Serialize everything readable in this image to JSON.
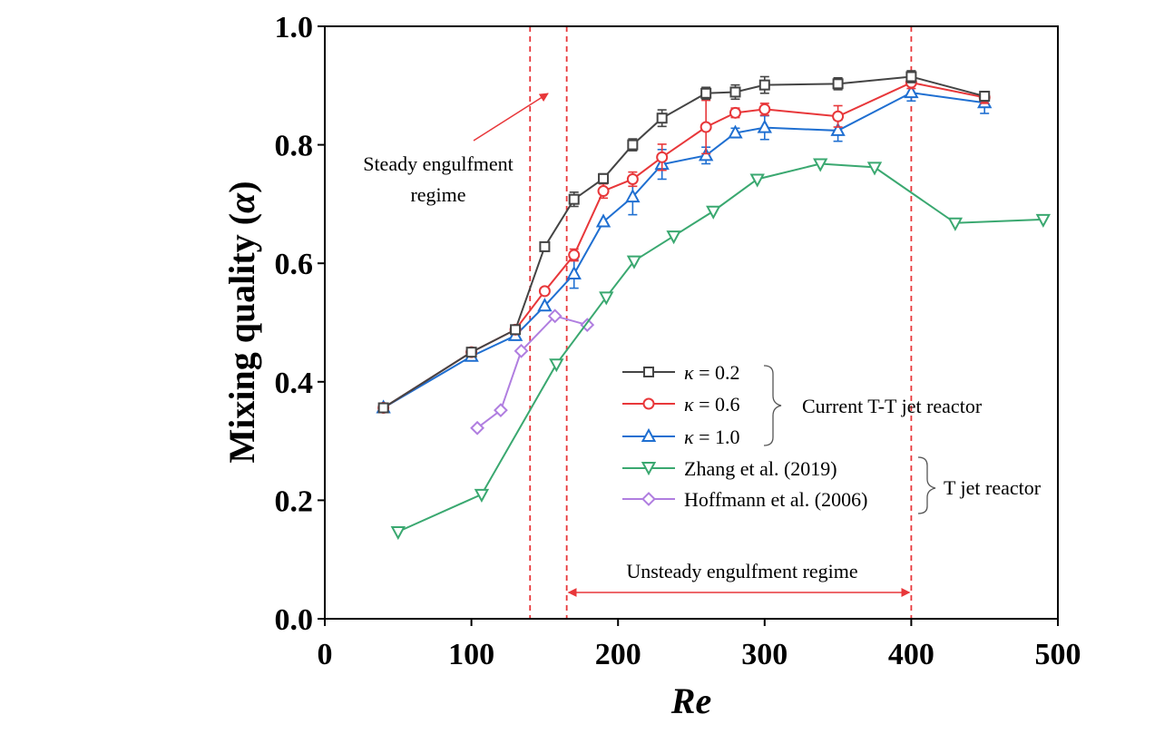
{
  "chart_data": {
    "type": "line",
    "xlabel": "Re",
    "ylabel_main": "Mixing quality (",
    "ylabel_symbol": "α",
    "ylabel_close": ")",
    "xlim": [
      0,
      500
    ],
    "ylim": [
      0.0,
      1.0
    ],
    "x_ticks": [
      "0",
      "100",
      "200",
      "300",
      "400",
      "500"
    ],
    "y_ticks": [
      "0.0",
      "0.2",
      "0.4",
      "0.6",
      "0.8",
      "1.0"
    ],
    "grid": false,
    "series": [
      {
        "name": "κ = 0.2",
        "symbol": "κ",
        "value_label": " = 0.2",
        "color": "#444444",
        "marker": "square",
        "x": [
          40,
          100,
          130,
          150,
          170,
          190,
          210,
          230,
          260,
          280,
          300,
          350,
          400,
          450
        ],
        "y": [
          0.356,
          0.45,
          0.488,
          0.628,
          0.708,
          0.743,
          0.8,
          0.845,
          0.887,
          0.889,
          0.901,
          0.903,
          0.915,
          0.882
        ],
        "err": [
          0,
          0,
          0,
          0,
          0.012,
          0.008,
          0.01,
          0.014,
          0.01,
          0.012,
          0.014,
          0.01,
          0.01,
          0.008
        ]
      },
      {
        "name": "κ = 0.6",
        "symbol": "κ",
        "value_label": " = 0.6",
        "color": "#e8373a",
        "marker": "circle",
        "x": [
          40,
          100,
          130,
          150,
          170,
          190,
          210,
          230,
          260,
          280,
          300,
          350,
          400,
          450
        ],
        "y": [
          0.356,
          0.45,
          0.488,
          0.553,
          0.614,
          0.722,
          0.742,
          0.779,
          0.83,
          0.854,
          0.86,
          0.848,
          0.905,
          0.88
        ],
        "err": [
          0,
          0,
          0,
          0,
          0.01,
          0.012,
          0.012,
          0.022,
          0.045,
          0.008,
          0.01,
          0.018,
          0.01,
          0.01
        ]
      },
      {
        "name": "κ = 1.0",
        "symbol": "κ",
        "value_label": " = 1.0",
        "color": "#1f6fd1",
        "marker": "triangle-up",
        "x": [
          40,
          100,
          130,
          150,
          170,
          190,
          210,
          230,
          260,
          280,
          300,
          350,
          400,
          450
        ],
        "y": [
          0.356,
          0.443,
          0.478,
          0.528,
          0.582,
          0.67,
          0.712,
          0.767,
          0.782,
          0.82,
          0.829,
          0.824,
          0.888,
          0.871
        ],
        "err": [
          0,
          0,
          0,
          0,
          0.024,
          0,
          0.03,
          0.025,
          0.014,
          0.008,
          0.02,
          0.018,
          0.014,
          0.018
        ]
      },
      {
        "name": "Zhang et al. (2019)",
        "color": "#3aa870",
        "marker": "triangle-down",
        "x": [
          50,
          107,
          158,
          192,
          211,
          238,
          265,
          295,
          338,
          375,
          430,
          490
        ],
        "y": [
          0.147,
          0.21,
          0.43,
          0.543,
          0.604,
          0.646,
          0.688,
          0.742,
          0.768,
          0.762,
          0.668,
          0.674
        ],
        "err": []
      },
      {
        "name": "Hoffmann et al. (2006)",
        "color": "#b07ee0",
        "marker": "diamond",
        "x": [
          104,
          120,
          134,
          157,
          179
        ],
        "y": [
          0.322,
          0.352,
          0.452,
          0.511,
          0.496
        ],
        "err": []
      }
    ],
    "legend_groups": [
      {
        "label": "Current T-T jet reactor"
      },
      {
        "label": "T jet reactor"
      }
    ],
    "vlines": [
      140,
      165,
      400
    ],
    "annotations": {
      "steady_line1": "Steady engulfment",
      "steady_line2": "regime",
      "unsteady": "Unsteady engulfment regime",
      "unsteady_range": [
        165,
        400
      ]
    },
    "colors": {
      "vline": "#e8373a",
      "arrow": "#e8373a",
      "axis": "#000000"
    }
  }
}
